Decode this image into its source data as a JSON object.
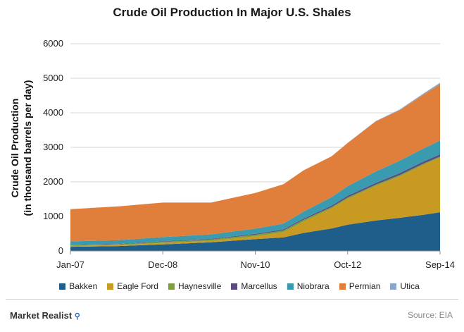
{
  "chart_data": {
    "type": "area",
    "stacked": true,
    "title": "Crude Oil Production In Major U.S. Shales",
    "ylabel_line1": "Crude Oil Production",
    "ylabel_line2": "(in thousand barrels per day)",
    "xlabel": "",
    "ylim": [
      0,
      6000
    ],
    "yticks": [
      0,
      1000,
      2000,
      3000,
      4000,
      5000,
      6000
    ],
    "xticks": [
      "Jan-07",
      "Dec-08",
      "Nov-10",
      "Oct-12",
      "Sep-14"
    ],
    "x": [
      "Jan-07",
      "Jan-08",
      "Dec-08",
      "Dec-09",
      "Nov-10",
      "Jun-11",
      "Nov-11",
      "Jun-12",
      "Oct-12",
      "May-13",
      "Nov-13",
      "May-14",
      "Sep-14"
    ],
    "series": [
      {
        "name": "Bakken",
        "color": "#1f5d8a",
        "values": [
          120,
          140,
          190,
          250,
          340,
          390,
          520,
          650,
          760,
          880,
          960,
          1050,
          1120
        ]
      },
      {
        "name": "Eagle Ford",
        "color": "#c99a22",
        "values": [
          30,
          30,
          40,
          40,
          80,
          150,
          330,
          580,
          750,
          1000,
          1200,
          1450,
          1580
        ]
      },
      {
        "name": "Haynesville",
        "color": "#7da03c",
        "values": [
          15,
          20,
          35,
          40,
          50,
          50,
          50,
          40,
          40,
          40,
          40,
          35,
          35
        ]
      },
      {
        "name": "Marcellus",
        "color": "#5d4a80",
        "values": [
          10,
          10,
          15,
          20,
          25,
          30,
          35,
          40,
          45,
          50,
          55,
          60,
          60
        ]
      },
      {
        "name": "Niobrara",
        "color": "#3a9ab0",
        "values": [
          100,
          110,
          120,
          130,
          150,
          170,
          200,
          250,
          280,
          330,
          360,
          380,
          400
        ]
      },
      {
        "name": "Permian",
        "color": "#e07f3c",
        "values": [
          935,
          980,
          1000,
          920,
          1035,
          1140,
          1195,
          1180,
          1250,
          1450,
          1460,
          1560,
          1630
        ]
      },
      {
        "name": "Utica",
        "color": "#8aa6c8",
        "values": [
          0,
          0,
          0,
          0,
          0,
          0,
          0,
          0,
          5,
          10,
          20,
          35,
          45
        ]
      }
    ]
  },
  "branding": {
    "name": "Market Realist",
    "icon": "magnifier-icon"
  },
  "source": "Source: EIA"
}
